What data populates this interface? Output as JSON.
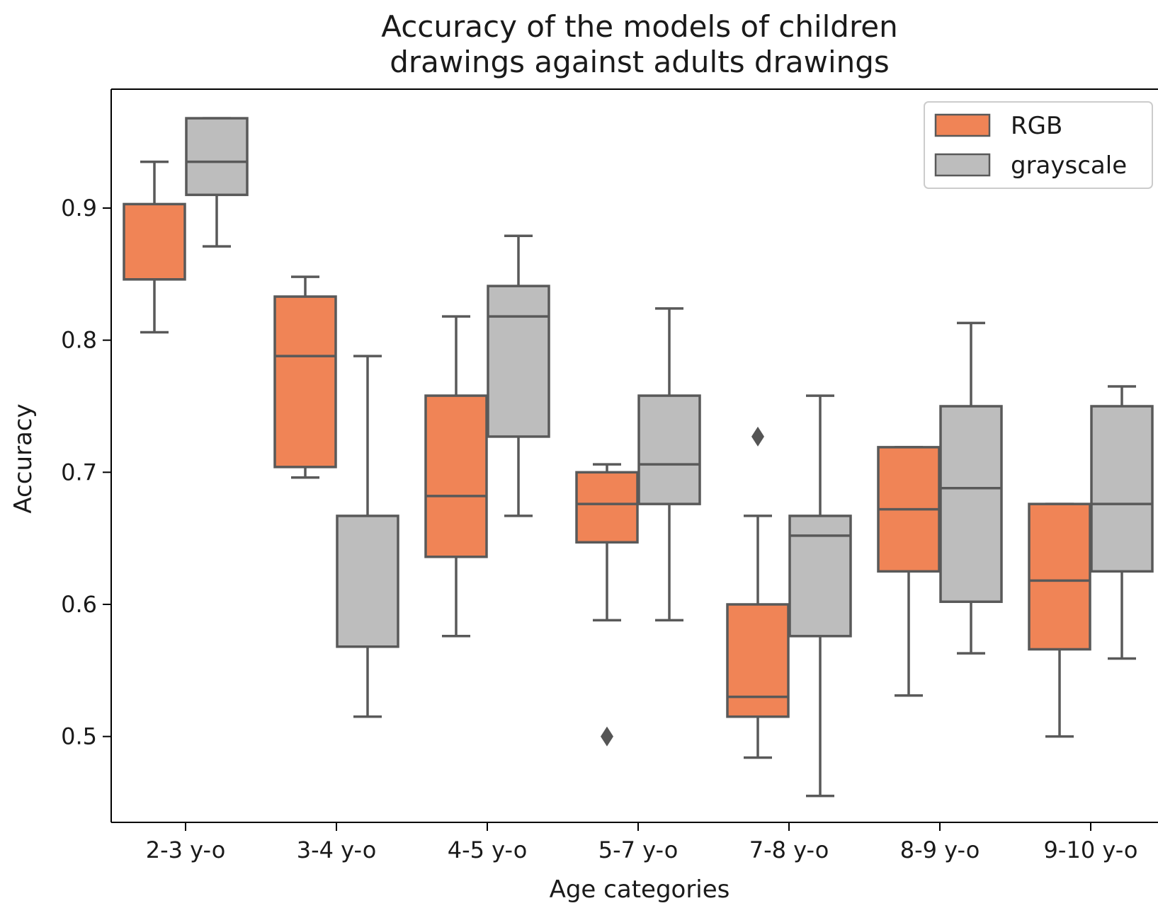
{
  "chart_data": {
    "type": "box",
    "title_lines": [
      "Accuracy of the models of children",
      "drawings against adults drawings"
    ],
    "xlabel": "Age categories",
    "ylabel": "Accuracy",
    "categories": [
      "2-3 y-o",
      "3-4 y-o",
      "4-5 y-o",
      "5-7 y-o",
      "7-8 y-o",
      "8-9 y-o",
      "9-10 y-o"
    ],
    "ylim": [
      0.435,
      0.99
    ],
    "yticks": [
      "0.5",
      "0.6",
      "0.7",
      "0.8",
      "0.9"
    ],
    "legend": {
      "position": "top-right"
    },
    "series": [
      {
        "name": "RGB",
        "color": "#f08456",
        "boxes": [
          {
            "whislo": 0.806,
            "q1": 0.846,
            "med": 0.846,
            "q3": 0.903,
            "whishi": 0.935,
            "fliers": []
          },
          {
            "whislo": 0.696,
            "q1": 0.704,
            "med": 0.788,
            "q3": 0.833,
            "whishi": 0.848,
            "fliers": []
          },
          {
            "whislo": 0.576,
            "q1": 0.636,
            "med": 0.682,
            "q3": 0.758,
            "whishi": 0.818,
            "fliers": []
          },
          {
            "whislo": 0.588,
            "q1": 0.647,
            "med": 0.676,
            "q3": 0.7,
            "whishi": 0.706,
            "fliers": [
              0.5
            ]
          },
          {
            "whislo": 0.484,
            "q1": 0.515,
            "med": 0.53,
            "q3": 0.6,
            "whishi": 0.667,
            "fliers": [
              0.727
            ]
          },
          {
            "whislo": 0.531,
            "q1": 0.625,
            "med": 0.672,
            "q3": 0.719,
            "whishi": 0.719,
            "fliers": []
          },
          {
            "whislo": 0.5,
            "q1": 0.566,
            "med": 0.618,
            "q3": 0.676,
            "whishi": 0.676,
            "fliers": []
          }
        ]
      },
      {
        "name": "grayscale",
        "color": "#bdbdbd",
        "boxes": [
          {
            "whislo": 0.871,
            "q1": 0.91,
            "med": 0.935,
            "q3": 0.968,
            "whishi": 0.968,
            "fliers": []
          },
          {
            "whislo": 0.515,
            "q1": 0.568,
            "med": 0.568,
            "q3": 0.667,
            "whishi": 0.788,
            "fliers": []
          },
          {
            "whislo": 0.667,
            "q1": 0.727,
            "med": 0.818,
            "q3": 0.841,
            "whishi": 0.879,
            "fliers": []
          },
          {
            "whislo": 0.588,
            "q1": 0.676,
            "med": 0.706,
            "q3": 0.758,
            "whishi": 0.824,
            "fliers": []
          },
          {
            "whislo": 0.455,
            "q1": 0.576,
            "med": 0.652,
            "q3": 0.667,
            "whishi": 0.758,
            "fliers": []
          },
          {
            "whislo": 0.563,
            "q1": 0.602,
            "med": 0.688,
            "q3": 0.75,
            "whishi": 0.813,
            "fliers": []
          },
          {
            "whislo": 0.559,
            "q1": 0.625,
            "med": 0.676,
            "q3": 0.75,
            "whishi": 0.765,
            "fliers": []
          }
        ]
      }
    ]
  }
}
